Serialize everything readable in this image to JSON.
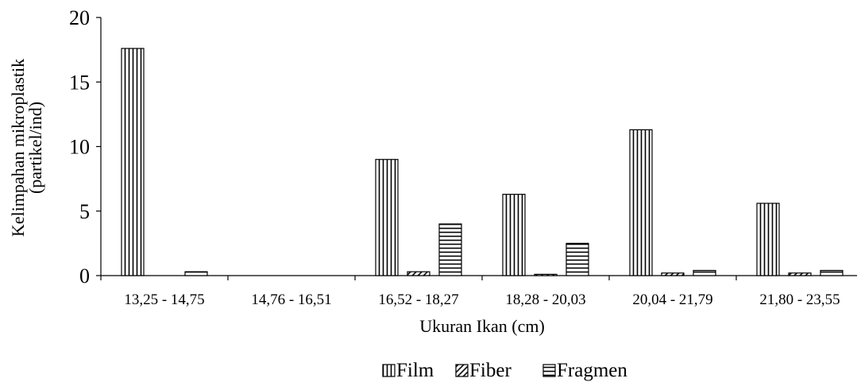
{
  "chart_data": {
    "type": "bar",
    "categories": [
      "13,25 - 14,75",
      "14,76 - 16,51",
      "16,52 - 18,27",
      "18,28 - 20,03",
      "20,04 - 21,79",
      "21,80 - 23,55"
    ],
    "series": [
      {
        "name": "Film",
        "pattern": "vertical-lines",
        "values": [
          17.6,
          0,
          9.0,
          6.3,
          11.3,
          5.6
        ]
      },
      {
        "name": "Fiber",
        "pattern": "diagonal-lines",
        "values": [
          0,
          0,
          0.3,
          0.1,
          0.2,
          0.2
        ]
      },
      {
        "name": "Fragmen",
        "pattern": "horizontal-lines",
        "values": [
          0.3,
          0,
          4.0,
          2.5,
          0.4,
          0.4
        ]
      }
    ],
    "xlabel": "Ukuran Ikan (cm)",
    "ylabel_line1": "Kelimpahan mikroplastik",
    "ylabel_line2": "(partikel/ind)",
    "ylim": [
      0,
      20
    ],
    "yticks": [
      0,
      5,
      10,
      15,
      20
    ],
    "legend_position": "bottom-center",
    "grid": false,
    "colors": {
      "bar_fill": "#ffffff",
      "stroke": "#000000"
    }
  }
}
